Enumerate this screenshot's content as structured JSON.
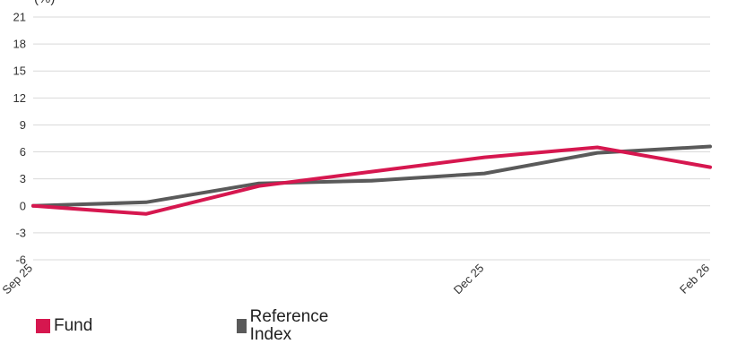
{
  "chart_data": {
    "type": "line",
    "ylabel": "(%)",
    "ylim": [
      -6,
      21
    ],
    "yticks": [
      21,
      18,
      15,
      12,
      9,
      6,
      3,
      0,
      -3,
      -6
    ],
    "x_tick_labels": [
      "Sep 25",
      "Dec 25",
      "Feb 26"
    ],
    "grid": true,
    "legend_position": "bottom",
    "series": [
      {
        "name": "Fund",
        "color": "#d6174f",
        "x": [
          "Sep 25",
          "",
          "",
          "",
          "Dec 25",
          "",
          "Feb 26"
        ],
        "values": [
          0,
          -0.9,
          2.2,
          3.8,
          5.4,
          6.5,
          4.3
        ]
      },
      {
        "name": "Reference Index",
        "color": "#5a5a5a",
        "x": [
          "Sep 25",
          "",
          "",
          "",
          "Dec 25",
          "",
          "Feb 26"
        ],
        "values": [
          0,
          0.4,
          2.5,
          2.8,
          3.6,
          5.9,
          6.6
        ]
      }
    ]
  },
  "legend": {
    "fund_label": "Fund",
    "index_label": "Reference Index"
  }
}
